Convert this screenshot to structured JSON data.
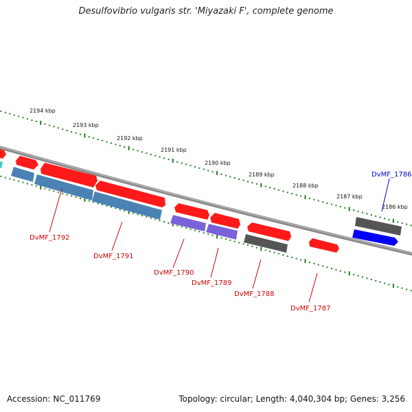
{
  "title": "Desulfovibrio vulgaris str. 'Miyazaki F', complete genome",
  "footer": {
    "accession": "Accession: NC_011769",
    "summary": "Topology: circular; Length: 4,040,304 bp; Genes: 3,256"
  },
  "colors": {
    "backbone": "#8a8a8a",
    "ticks": "#1f7a1f",
    "cds_forward": "#ff1a1a",
    "cds_reverse_steel": "#4a82b4",
    "cds_reverse_purple": "#7a62d8",
    "cds_reverse_gray": "#666666",
    "cds_highlight_blue": "#0000ff",
    "label_red": "#cc0000",
    "label_blue": "#0000cc"
  },
  "scale": {
    "labels": [
      "2194 kbp",
      "2193 kbp",
      "2192 kbp",
      "2191 kbp",
      "2190 kbp",
      "2189 kbp",
      "2188 kbp",
      "2187 kbp",
      "2186 kbp"
    ]
  },
  "gene_labels": {
    "g1792": "DvMF_1792",
    "g1791": "DvMF_1791",
    "g1790": "DvMF_1790",
    "g1789": "DvMF_1789",
    "g1788": "DvMF_1788",
    "g1787": "DvMF_1787",
    "g1786": "DvMF_1786"
  }
}
